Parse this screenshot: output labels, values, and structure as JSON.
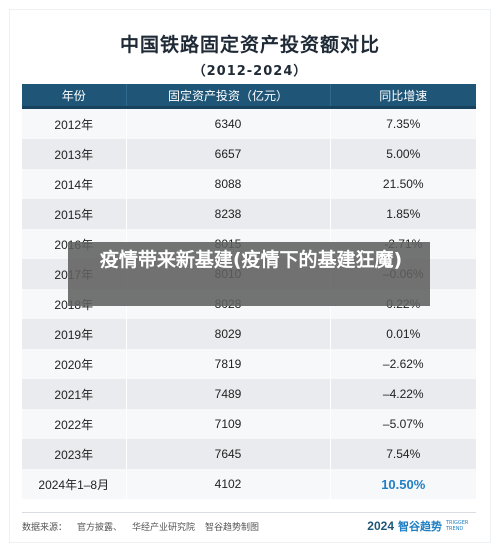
{
  "header": {
    "title": "中国铁路固定资产投资额对比",
    "subtitle": "（2012-2024）"
  },
  "table": {
    "columns": [
      "年份",
      "固定资产投资（亿元）",
      "同比增速"
    ],
    "rows": [
      {
        "year": "2012年",
        "investment": "6340",
        "growth": "7.35%"
      },
      {
        "year": "2013年",
        "investment": "6657",
        "growth": "5.00%"
      },
      {
        "year": "2014年",
        "investment": "8088",
        "growth": "21.50%"
      },
      {
        "year": "2015年",
        "investment": "8238",
        "growth": "1.85%"
      },
      {
        "year": "2016年",
        "investment": "8015",
        "growth": "-2.71%"
      },
      {
        "year": "2017年",
        "investment": "8010",
        "growth": "–0.06%"
      },
      {
        "year": "2018年",
        "investment": "8028",
        "growth": "0.22%"
      },
      {
        "year": "2019年",
        "investment": "8029",
        "growth": "0.01%"
      },
      {
        "year": "2020年",
        "investment": "7819",
        "growth": "–2.62%"
      },
      {
        "year": "2021年",
        "investment": "7489",
        "growth": "–4.22%"
      },
      {
        "year": "2022年",
        "investment": "7109",
        "growth": "–5.07%"
      },
      {
        "year": "2023年",
        "investment": "7645",
        "growth": "7.54%"
      },
      {
        "year": "2024年1–8月",
        "investment": "4102",
        "growth": "10.50%"
      }
    ]
  },
  "footer": {
    "source_label": "数据来源：",
    "sources": [
      "官方披露、",
      "华经产业研究院",
      "智谷趋势制图"
    ],
    "brand_year": "2024",
    "brand_name": "智谷趋势",
    "brand_en": "TRIGGER TREND"
  },
  "overlay": {
    "caption": "疫情带来新基建(疫情下的基建狂魔)"
  },
  "colors": {
    "header_bg": "#1f5678",
    "highlight": "#1f7fc4",
    "row_light": "#f7f8fa",
    "row_dark": "#e9ebee"
  }
}
